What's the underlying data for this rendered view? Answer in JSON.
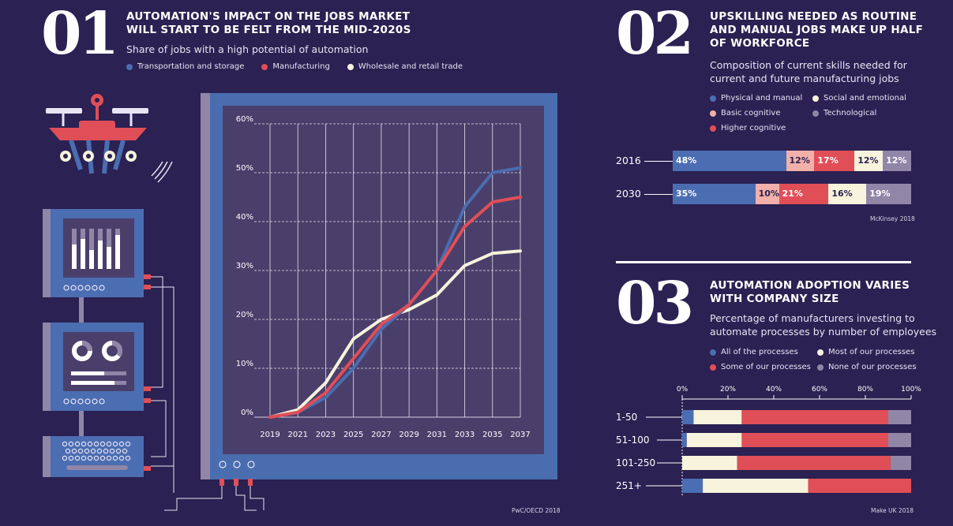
{
  "colors": {
    "background": "#2b2152",
    "blue": "#4b6db1",
    "red": "#e04e57",
    "cream": "#f7f3dc",
    "pink": "#f2b0aa",
    "grey": "#8f86a8",
    "screen": "#4a3f6b",
    "frame": "#4a6db0"
  },
  "section1": {
    "number": "01",
    "title_line1": "AUTOMATION'S IMPACT ON THE JOBS MARKET",
    "title_line2": "WILL START TO BE FELT FROM THE MID-2020S",
    "subtitle": "Share of jobs with a high potential of automation",
    "source": "PwC/OECD 2018"
  },
  "section2": {
    "number": "02",
    "title_line1": "UPSKILLING NEEDED AS ROUTINE",
    "title_line2": "AND MANUAL JOBS MAKE UP HALF",
    "title_line3": "OF WORKFORCE",
    "subtitle_line1": "Composition of current skills needed for",
    "subtitle_line2": "current and future manufacturing jobs",
    "source": "McKinsey 2018"
  },
  "section3": {
    "number": "03",
    "title_line1": "AUTOMATION ADOPTION VARIES",
    "title_line2": "WITH COMPANY SIZE",
    "subtitle_line1": "Percentage of manufacturers investing to",
    "subtitle_line2": "automate processes by number of employees",
    "source": "Make UK 2018"
  },
  "icons": {
    "drone": "drone-robot-icon",
    "computer1": "bar-chart-monitor-icon",
    "computer2": "donut-chart-monitor-icon",
    "keyboard": "keyboard-icon"
  },
  "chart_data": [
    {
      "type": "line",
      "title": "Share of jobs with a high potential of automation",
      "x": [
        2019,
        2021,
        2023,
        2025,
        2027,
        2029,
        2031,
        2033,
        2035,
        2037
      ],
      "x_tick_labels": [
        "2019",
        "2021",
        "2023",
        "2025",
        "2027",
        "2029",
        "2031",
        "2033",
        "2035",
        "2037"
      ],
      "y_tick_labels": [
        "0%",
        "10%",
        "20%",
        "30%",
        "40%",
        "50%",
        "60%"
      ],
      "ylim": [
        0,
        60
      ],
      "grid": true,
      "series": [
        {
          "name": "Transportation and storage",
          "color": "#4b6db1",
          "values": [
            0,
            1,
            4,
            10,
            18,
            23,
            30,
            43,
            50,
            51
          ]
        },
        {
          "name": "Manufacturing",
          "color": "#e04e57",
          "values": [
            0,
            1,
            5,
            12,
            19,
            23,
            30,
            39,
            44,
            45
          ]
        },
        {
          "name": "Wholesale and retail trade",
          "color": "#f7f3dc",
          "values": [
            0,
            1.5,
            7,
            16,
            20,
            22,
            25,
            31,
            33.5,
            34
          ]
        }
      ]
    },
    {
      "type": "bar",
      "orientation": "horizontal",
      "stacked": true,
      "title": "Composition of current skills needed for current and future manufacturing jobs",
      "categories": [
        "2016",
        "2030"
      ],
      "series": [
        {
          "name": "Physical and manual",
          "color": "#4b6db1",
          "text_color": "#ffffff",
          "values": [
            48,
            35
          ],
          "labels": [
            "48%",
            "35%"
          ]
        },
        {
          "name": "Basic cognitive",
          "color": "#f2b0aa",
          "text_color": "#2b2152",
          "values": [
            12,
            10
          ],
          "labels": [
            "12%",
            "10%"
          ]
        },
        {
          "name": "Higher cognitive",
          "color": "#e04e57",
          "text_color": "#ffffff",
          "values": [
            17,
            21
          ],
          "labels": [
            "17%",
            "21%"
          ]
        },
        {
          "name": "Social and emotional",
          "color": "#f7f3dc",
          "text_color": "#2b2152",
          "values": [
            12,
            16
          ],
          "labels": [
            "12%",
            "16%"
          ]
        },
        {
          "name": "Technological",
          "color": "#8f86a8",
          "text_color": "#ffffff",
          "values": [
            12,
            19
          ],
          "labels": [
            "12%",
            "19%"
          ]
        }
      ],
      "legend": [
        {
          "name": "Physical and manual",
          "color": "#4b6db1"
        },
        {
          "name": "Social and emotional",
          "color": "#f7f3dc"
        },
        {
          "name": "Basic cognitive",
          "color": "#f2b0aa"
        },
        {
          "name": "Technological",
          "color": "#8f86a8"
        },
        {
          "name": "Higher cognitive",
          "color": "#e04e57"
        }
      ]
    },
    {
      "type": "bar",
      "orientation": "horizontal",
      "stacked": true,
      "title": "Percentage of manufacturers investing to automate processes by number of employees",
      "categories": [
        "1-50",
        "51-100",
        "101-250",
        "251+"
      ],
      "x_tick_labels": [
        "0%",
        "20%",
        "40%",
        "60%",
        "80%",
        "100%"
      ],
      "xlim": [
        0,
        100
      ],
      "series": [
        {
          "name": "All of the processes",
          "color": "#4b6db1",
          "values": [
            5,
            2,
            0,
            9
          ]
        },
        {
          "name": "Most of our processes",
          "color": "#f7f3dc",
          "values": [
            21,
            24,
            24,
            46
          ]
        },
        {
          "name": "Some of our processes",
          "color": "#e04e57",
          "values": [
            64,
            64,
            67,
            45
          ]
        },
        {
          "name": "None of our processes",
          "color": "#8f86a8",
          "values": [
            10,
            10,
            9,
            0
          ]
        }
      ],
      "legend": [
        {
          "name": "All of the processes",
          "color": "#4b6db1"
        },
        {
          "name": "Most of our processes",
          "color": "#f7f3dc"
        },
        {
          "name": "Some of our processes",
          "color": "#e04e57"
        },
        {
          "name": "None of our processes",
          "color": "#8f86a8"
        }
      ]
    }
  ]
}
